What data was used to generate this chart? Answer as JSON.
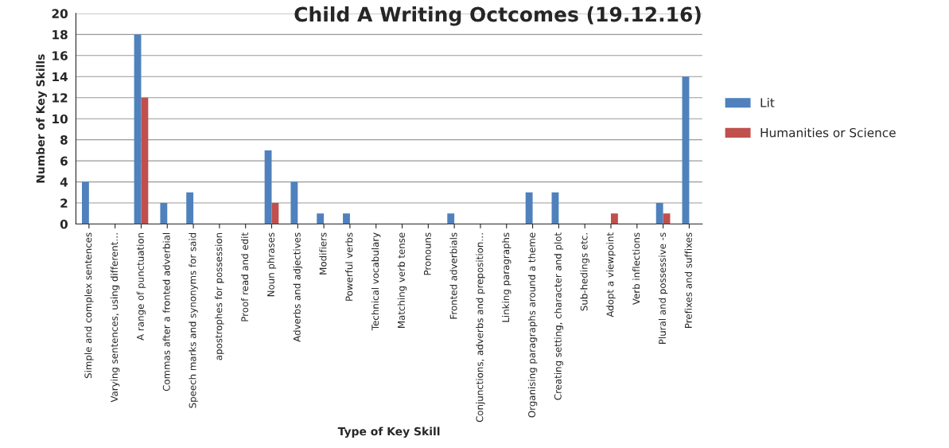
{
  "chart_data": {
    "type": "bar",
    "title": "Child A Writing Octcomes (19.12.16)",
    "xlabel": "Type of Key Skill",
    "ylabel": "Number of Key Skills",
    "categories": [
      "Simple and complex sentences",
      "Varying sentences, using different…",
      "A range of punctuation",
      "Commas after a fronted adverbial",
      "Speech marks and synonyms for said",
      "apostrophes for possession",
      "Proof read and edit",
      "Noun phrases",
      "Adverbs and adjectives",
      "Modifiers",
      "Powerful verbs",
      "Technical vocabulary",
      "Matching verb tense",
      "Pronouns",
      "Fronted adverbials",
      "Conjunctions, adverbs and preposition…",
      "Linking paragraphs",
      "Organising paragraphs around a theme",
      "Creating setting, character and plot",
      "Sub-hedings etc.",
      "Adopt a viewpoint",
      "Verb inflections",
      "Plural and possessive -s",
      "Prefixes and suffixes"
    ],
    "series": [
      {
        "name": "Lit",
        "color": "#4f81bd",
        "values": [
          4,
          0,
          18,
          2,
          3,
          0,
          0,
          7,
          4,
          1,
          1,
          0,
          0,
          0,
          1,
          0,
          0,
          3,
          3,
          0,
          0,
          0,
          2,
          14
        ]
      },
      {
        "name": "Humanities or Science",
        "color": "#c0504d",
        "values": [
          0,
          0,
          12,
          0,
          0,
          0,
          0,
          2,
          0,
          0,
          0,
          0,
          0,
          0,
          0,
          0,
          0,
          0,
          0,
          0,
          1,
          0,
          1,
          0
        ]
      }
    ],
    "ylim": [
      0,
      20
    ],
    "yticks": [
      0,
      2,
      4,
      6,
      8,
      10,
      12,
      14,
      16,
      18,
      20
    ],
    "grid": "y",
    "legend": "right"
  }
}
